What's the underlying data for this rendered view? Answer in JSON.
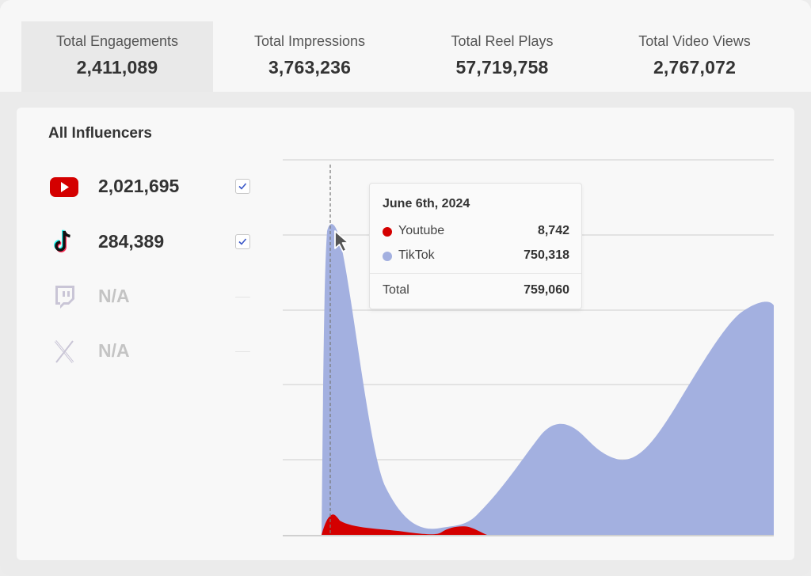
{
  "metrics": [
    {
      "label": "Total Engagements",
      "value": "2,411,089",
      "active": true
    },
    {
      "label": "Total Impressions",
      "value": "3,763,236",
      "active": false
    },
    {
      "label": "Total Reel Plays",
      "value": "57,719,758",
      "active": false
    },
    {
      "label": "Total Video Views",
      "value": "2,767,072",
      "active": false
    }
  ],
  "panel": {
    "title": "All Influencers",
    "platforms": [
      {
        "icon": "youtube-icon",
        "value": "2,021,695",
        "checked": true
      },
      {
        "icon": "tiktok-icon",
        "value": "284,389",
        "checked": true
      },
      {
        "icon": "twitch-icon",
        "value": "N/A",
        "checked": false
      },
      {
        "icon": "x-icon",
        "value": "N/A",
        "checked": false
      }
    ]
  },
  "tooltip": {
    "title": "June 6th, 2024",
    "series": [
      {
        "name": "Youtube",
        "value": "8,742",
        "color": "#d40000"
      },
      {
        "name": "TikTok",
        "value": "750,318",
        "color": "#a3b0e0"
      }
    ],
    "total_label": "Total",
    "total_value": "759,060"
  },
  "colors": {
    "youtube": "#d40000",
    "tiktok_area": "#a3b0e0",
    "checkbox_tick": "#3a57c8",
    "disabled_icon": "#c9c5d6"
  },
  "chart_data": {
    "type": "area",
    "series": [
      {
        "name": "TikTok",
        "color": "#a3b0e0"
      },
      {
        "name": "Youtube",
        "color": "#d40000"
      }
    ],
    "grid": true,
    "crosshair_at": "June 6th, 2024"
  }
}
